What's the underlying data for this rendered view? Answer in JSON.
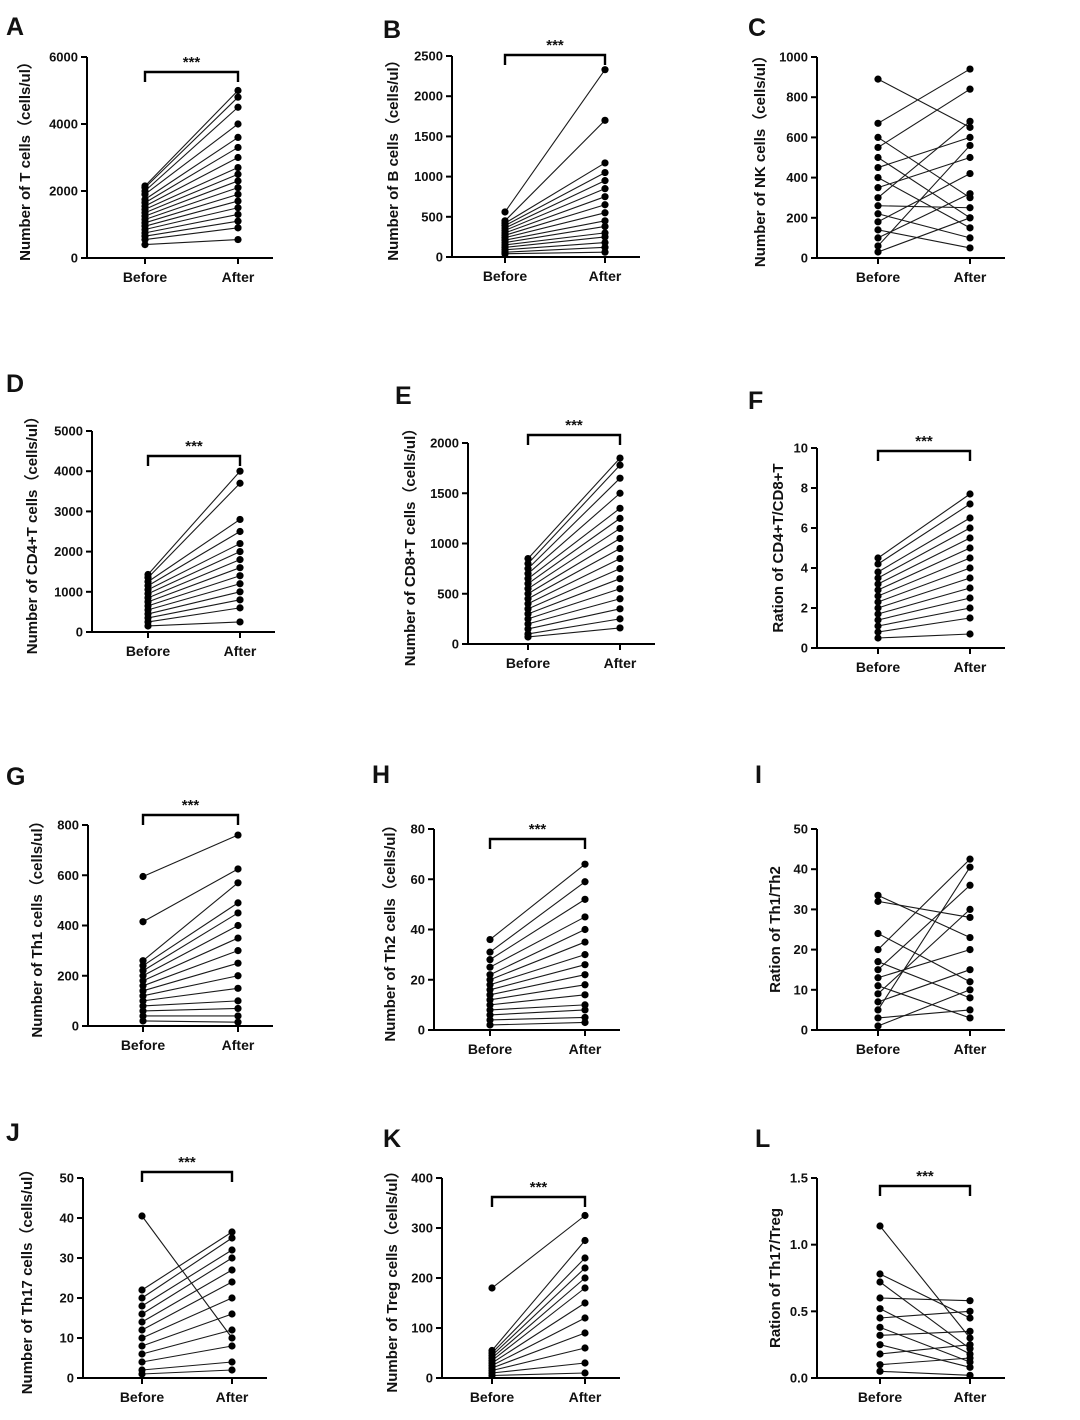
{
  "figure": {
    "line_color": "#1a1a1a",
    "point_color": "#000000"
  },
  "chart_data": [
    {
      "letter": "A",
      "type": "paired-dot-line",
      "ylabel": "Number of T cells（cells/ul）",
      "categories": [
        "Before",
        "After"
      ],
      "ylim": [
        0,
        6000
      ],
      "yticks": [
        0,
        2000,
        4000,
        6000
      ],
      "yticklabels": [
        "0",
        "2000",
        "4000",
        "6000"
      ],
      "significance": "***",
      "before": [
        2150,
        2100,
        2000,
        1900,
        1750,
        1650,
        1550,
        1450,
        1350,
        1250,
        1150,
        1050,
        950,
        850,
        750,
        650,
        550,
        400
      ],
      "after": [
        5000,
        4800,
        4500,
        4000,
        3600,
        3300,
        3000,
        2700,
        2500,
        2300,
        2100,
        1900,
        1700,
        1500,
        1300,
        1100,
        900,
        550
      ]
    },
    {
      "letter": "B",
      "type": "paired-dot-line",
      "ylabel": "Number of B cells（cells/ul）",
      "categories": [
        "Before",
        "After"
      ],
      "ylim": [
        0,
        2500
      ],
      "yticks": [
        0,
        500,
        1000,
        1500,
        2000,
        2500
      ],
      "yticklabels": [
        "0",
        "500",
        "1000",
        "1500",
        "2000",
        "2500"
      ],
      "significance": "***",
      "before": [
        560,
        450,
        420,
        390,
        360,
        330,
        300,
        270,
        240,
        210,
        180,
        150,
        120,
        90,
        60,
        40
      ],
      "after": [
        2330,
        1700,
        1170,
        1050,
        950,
        850,
        750,
        650,
        550,
        450,
        380,
        300,
        250,
        180,
        120,
        60
      ]
    },
    {
      "letter": "C",
      "type": "paired-dot-line",
      "ylabel": "Number of NK cells（cells/ul）",
      "categories": [
        "Before",
        "After"
      ],
      "ylim": [
        0,
        1000
      ],
      "yticks": [
        0,
        200,
        400,
        600,
        800,
        1000
      ],
      "yticklabels": [
        "0",
        "200",
        "400",
        "600",
        "800",
        "1000"
      ],
      "significance": "",
      "before": [
        890,
        670,
        600,
        550,
        500,
        450,
        400,
        350,
        300,
        260,
        220,
        180,
        140,
        100,
        60,
        30
      ],
      "after": [
        650,
        940,
        300,
        840,
        200,
        600,
        150,
        500,
        680,
        250,
        100,
        420,
        50,
        320,
        560,
        200
      ]
    },
    {
      "letter": "D",
      "type": "paired-dot-line",
      "ylabel": "Number of CD4+T cells（cells/ul）",
      "categories": [
        "Before",
        "After"
      ],
      "ylim": [
        0,
        5000
      ],
      "yticks": [
        0,
        1000,
        2000,
        3000,
        4000,
        5000
      ],
      "yticklabels": [
        "0",
        "1000",
        "2000",
        "3000",
        "4000",
        "5000"
      ],
      "significance": "***",
      "before": [
        1430,
        1350,
        1250,
        1150,
        1050,
        950,
        850,
        750,
        650,
        550,
        450,
        350,
        250,
        150
      ],
      "after": [
        4000,
        3700,
        2800,
        2500,
        2200,
        2000,
        1800,
        1600,
        1400,
        1200,
        1000,
        800,
        600,
        250
      ]
    },
    {
      "letter": "E",
      "type": "paired-dot-line",
      "ylabel": "Number of CD8+T cells（cells/ul）",
      "categories": [
        "Before",
        "After"
      ],
      "ylim": [
        0,
        2000
      ],
      "yticks": [
        0,
        500,
        1000,
        1500,
        2000
      ],
      "yticklabels": [
        "0",
        "500",
        "1000",
        "1500",
        "2000"
      ],
      "significance": "***",
      "before": [
        850,
        800,
        750,
        700,
        650,
        600,
        550,
        500,
        450,
        400,
        350,
        300,
        250,
        200,
        150,
        100,
        70
      ],
      "after": [
        1850,
        1780,
        1650,
        1500,
        1350,
        1250,
        1150,
        1050,
        950,
        850,
        750,
        650,
        550,
        450,
        350,
        250,
        160
      ]
    },
    {
      "letter": "F",
      "type": "paired-dot-line",
      "ylabel": "Ration of CD4+T/CD8+T",
      "categories": [
        "Before",
        "After"
      ],
      "ylim": [
        0,
        10
      ],
      "yticks": [
        0,
        2,
        4,
        6,
        8,
        10
      ],
      "yticklabels": [
        "0",
        "2",
        "4",
        "6",
        "8",
        "10"
      ],
      "significance": "***",
      "before": [
        4.5,
        4.2,
        3.8,
        3.5,
        3.2,
        2.9,
        2.6,
        2.3,
        2.0,
        1.7,
        1.4,
        1.1,
        0.8,
        0.5
      ],
      "after": [
        7.7,
        7.2,
        6.5,
        6.0,
        5.5,
        5.0,
        4.5,
        4.0,
        3.5,
        3.0,
        2.5,
        2.0,
        1.5,
        0.7
      ]
    },
    {
      "letter": "G",
      "type": "paired-dot-line",
      "ylabel": "Number of Th1 cells（cells/ul）",
      "categories": [
        "Before",
        "After"
      ],
      "ylim": [
        0,
        800
      ],
      "yticks": [
        0,
        200,
        400,
        600,
        800
      ],
      "yticklabels": [
        "0",
        "200",
        "400",
        "600",
        "800"
      ],
      "significance": "***",
      "before": [
        595,
        415,
        260,
        240,
        220,
        200,
        180,
        160,
        140,
        120,
        100,
        80,
        60,
        40,
        20
      ],
      "after": [
        760,
        625,
        570,
        490,
        450,
        400,
        350,
        300,
        250,
        200,
        150,
        100,
        70,
        40,
        15
      ]
    },
    {
      "letter": "H",
      "type": "paired-dot-line",
      "ylabel": "Number of Th2 cells（cells/ul）",
      "categories": [
        "Before",
        "After"
      ],
      "ylim": [
        0,
        80
      ],
      "yticks": [
        0,
        20,
        40,
        60,
        80
      ],
      "yticklabels": [
        "0",
        "20",
        "40",
        "60",
        "80"
      ],
      "significance": "***",
      "before": [
        36,
        31,
        28,
        25,
        22,
        20,
        18,
        16,
        14,
        12,
        10,
        8,
        6,
        4,
        2
      ],
      "after": [
        66,
        59,
        52,
        45,
        40,
        35,
        30,
        26,
        22,
        18,
        14,
        10,
        8,
        5,
        3
      ]
    },
    {
      "letter": "I",
      "type": "paired-dot-line",
      "ylabel": "Ration of Th1/Th2",
      "categories": [
        "Before",
        "After"
      ],
      "ylim": [
        0,
        50
      ],
      "yticks": [
        0,
        10,
        20,
        30,
        40,
        50
      ],
      "yticklabels": [
        "0",
        "10",
        "20",
        "30",
        "40",
        "50"
      ],
      "significance": "",
      "before": [
        33.5,
        32,
        24,
        20,
        17,
        15,
        13,
        11,
        9,
        7,
        5,
        3,
        1
      ],
      "after": [
        23,
        28,
        12,
        42.5,
        8,
        36,
        20,
        3,
        30,
        15,
        40.5,
        5,
        10
      ]
    },
    {
      "letter": "J",
      "type": "paired-dot-line",
      "ylabel": "Number of Th17 cells（cells/ul）",
      "categories": [
        "Before",
        "After"
      ],
      "ylim": [
        0,
        50
      ],
      "yticks": [
        0,
        10,
        20,
        30,
        40,
        50
      ],
      "yticklabels": [
        "0",
        "10",
        "20",
        "30",
        "40",
        "50"
      ],
      "significance": "***",
      "before": [
        40.5,
        22,
        20,
        18,
        16,
        14,
        12,
        10,
        8,
        6,
        4,
        2,
        1
      ],
      "after": [
        10,
        36.5,
        35,
        32,
        30,
        27,
        24,
        20,
        16,
        12,
        8,
        4,
        2
      ]
    },
    {
      "letter": "K",
      "type": "paired-dot-line",
      "ylabel": "Number of Treg cells（cells/ul）",
      "categories": [
        "Before",
        "After"
      ],
      "ylim": [
        0,
        400
      ],
      "yticks": [
        0,
        100,
        200,
        300,
        400
      ],
      "yticklabels": [
        "0",
        "100",
        "200",
        "300",
        "400"
      ],
      "significance": "***",
      "before": [
        180,
        55,
        50,
        45,
        40,
        35,
        30,
        25,
        20,
        15,
        10,
        5
      ],
      "after": [
        325,
        275,
        240,
        220,
        200,
        180,
        150,
        120,
        90,
        60,
        30,
        10
      ]
    },
    {
      "letter": "L",
      "type": "paired-dot-line",
      "ylabel": "Ration of Th17/Treg",
      "categories": [
        "Before",
        "After"
      ],
      "ylim": [
        0,
        1.5
      ],
      "yticks": [
        0,
        0.5,
        1.0,
        1.5
      ],
      "yticklabels": [
        "0.0",
        "0.5",
        "1.0",
        "1.5"
      ],
      "significance": "***",
      "before": [
        1.14,
        0.78,
        0.72,
        0.6,
        0.52,
        0.45,
        0.38,
        0.32,
        0.25,
        0.18,
        0.1,
        0.05
      ],
      "after": [
        0.3,
        0.45,
        0.22,
        0.58,
        0.18,
        0.5,
        0.12,
        0.35,
        0.08,
        0.25,
        0.15,
        0.02
      ]
    }
  ]
}
